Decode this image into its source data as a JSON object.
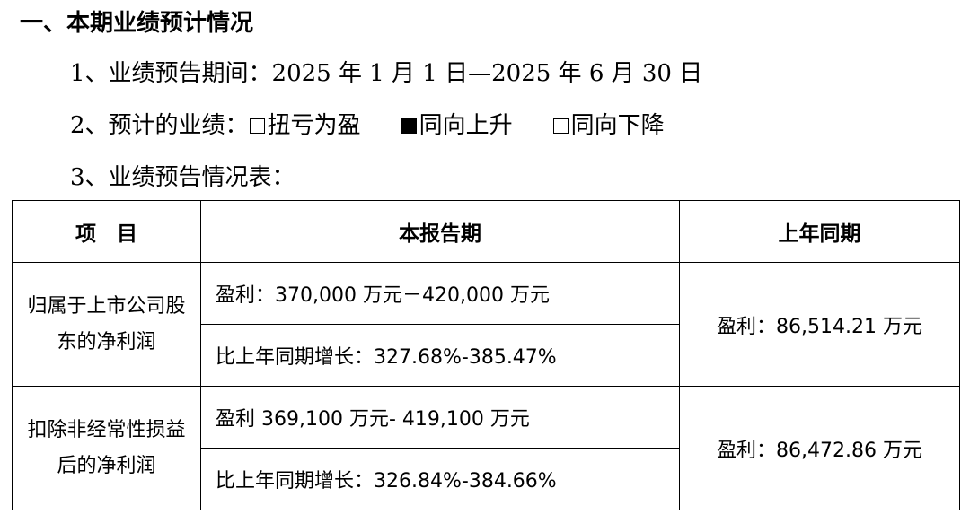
{
  "section_title": "一、本期业绩预计情况",
  "items": {
    "period_label": "1、业绩预告期间：2025 年 1 月 1 日—2025 年 6 月 30 日",
    "forecast_prefix": "2、预计的业绩：",
    "forecast_options": [
      {
        "label": "扭亏为盈",
        "checked": false
      },
      {
        "label": "同向上升",
        "checked": true
      },
      {
        "label": "同向下降",
        "checked": false
      }
    ],
    "table_intro": "3、业绩预告情况表："
  },
  "table": {
    "headers": [
      "项　目",
      "本报告期",
      "上年同期"
    ],
    "rows": [
      {
        "label": "归属于上市公司股东的净利润",
        "current_profit": "盈利：370,000 万元－420,000 万元",
        "current_growth": "比上年同期增长：327.68%-385.47%",
        "previous": "盈利：86,514.21 万元"
      },
      {
        "label": "扣除非经常性损益后的净利润",
        "current_profit": "盈利 369,100 万元- 419,100 万元",
        "current_growth": "比上年同期增长：326.84%-384.66%",
        "previous": "盈利：86,472.86 万元"
      }
    ]
  }
}
